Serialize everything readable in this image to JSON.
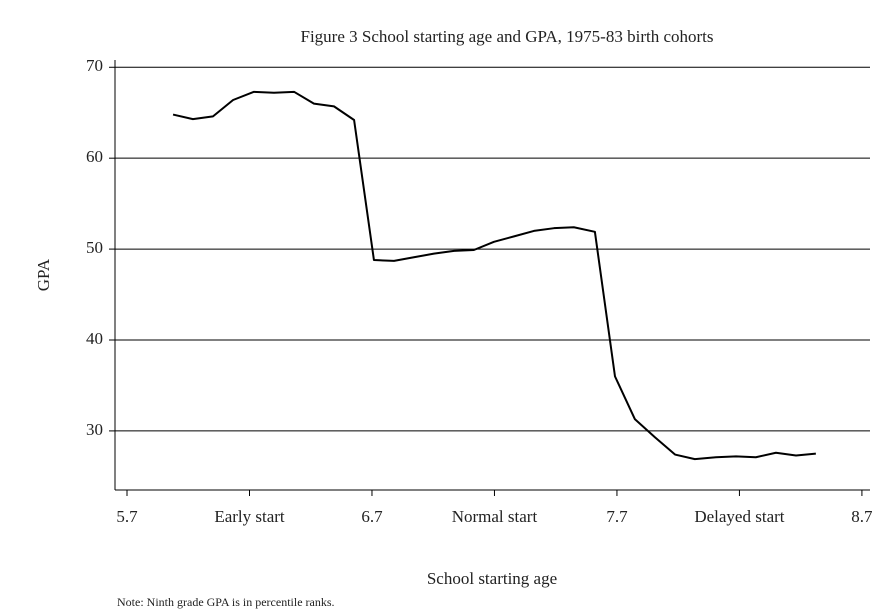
{
  "chart_data": {
    "type": "line",
    "title": "Figure 3 School starting age and GPA, 1975-83 birth cohorts",
    "x_label": "School starting age",
    "y_label": "GPA",
    "note": "Note: Ninth grade GPA is in percentile ranks.",
    "x": [
      5.888,
      5.969,
      6.051,
      6.133,
      6.218,
      6.3,
      6.382,
      6.463,
      6.545,
      6.627,
      6.708,
      6.79,
      6.871,
      6.953,
      7.035,
      7.116,
      7.198,
      7.28,
      7.361,
      7.443,
      7.524,
      7.61,
      7.692,
      7.773,
      7.855,
      7.937,
      8.018,
      8.104,
      8.186,
      8.267,
      8.349,
      8.431,
      8.512
    ],
    "series": [
      {
        "name": "GPA",
        "color": "#000000",
        "values": [
          64.8,
          64.3,
          64.6,
          66.4,
          67.3,
          67.2,
          67.3,
          66.0,
          65.7,
          64.2,
          48.8,
          48.7,
          49.1,
          49.5,
          49.8,
          49.9,
          50.8,
          51.4,
          52.0,
          52.3,
          52.4,
          51.9,
          36.0,
          31.3,
          29.3,
          27.4,
          26.9,
          27.1,
          27.2,
          27.1,
          27.6,
          27.3,
          27.5
        ]
      }
    ],
    "xlim": [
      5.651,
      8.733
    ],
    "ylim": [
      23.5,
      70.8
    ],
    "xticks": [
      5.7,
      {
        "value": 6.2,
        "label": "Early start"
      },
      6.7,
      {
        "value": 7.2,
        "label": "Normal start"
      },
      7.7,
      {
        "value": 8.2,
        "label": "Delayed start"
      },
      8.7
    ],
    "yticks": [
      30,
      40,
      50,
      60,
      70
    ],
    "grid": true
  }
}
